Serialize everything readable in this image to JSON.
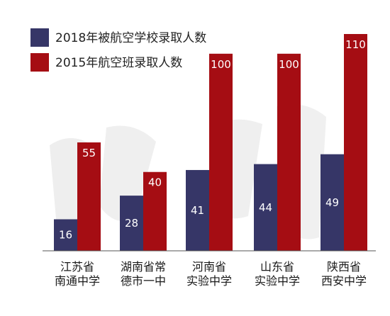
{
  "colors": {
    "series_2018": "#363667",
    "series_2015": "#a50d13",
    "axis": "#555555",
    "watermark": "#e6e6e6"
  },
  "chart_data": {
    "type": "bar",
    "title": "",
    "xlabel": "",
    "ylabel": "",
    "ylim": [
      0,
      110
    ],
    "legend_position": "top-left",
    "grid": false,
    "categories": [
      [
        "江苏省",
        "南通中学"
      ],
      [
        "湖南省常",
        "德市一中"
      ],
      [
        "河南省",
        "实验中学"
      ],
      [
        "山东省",
        "实验中学"
      ],
      [
        "陕西省",
        "西安中学"
      ]
    ],
    "series": [
      {
        "name": "2018年被航空学校录取人数",
        "values": [
          16,
          28,
          41,
          44,
          49
        ]
      },
      {
        "name": "2015年航空班录取人数",
        "values": [
          55,
          40,
          100,
          100,
          110
        ]
      }
    ]
  }
}
